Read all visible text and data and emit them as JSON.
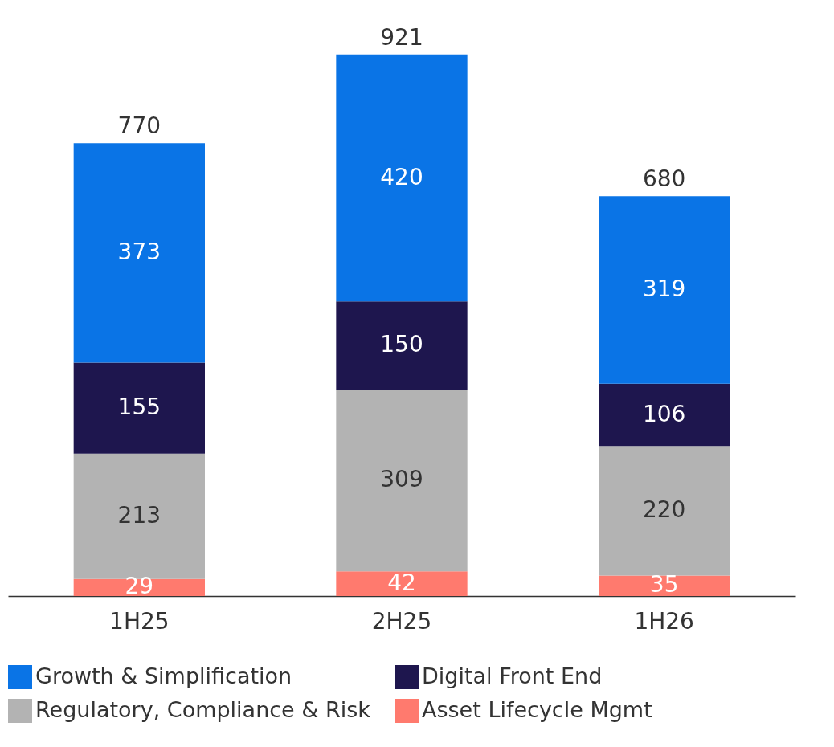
{
  "chart_data": {
    "type": "bar",
    "stacked": true,
    "categories": [
      "1H25",
      "2H25",
      "1H26"
    ],
    "series": [
      {
        "name": "Asset Lifecycle Mgmt",
        "color": "#ff7a6e",
        "values": [
          29,
          42,
          35
        ]
      },
      {
        "name": "Regulatory, Compliance & Risk",
        "color": "#b3b3b3",
        "values": [
          213,
          309,
          220
        ]
      },
      {
        "name": "Digital Front End",
        "color": "#1e164e",
        "values": [
          155,
          150,
          106
        ]
      },
      {
        "name": "Growth & Simplification",
        "color": "#0a74e6",
        "values": [
          373,
          420,
          319
        ]
      }
    ],
    "totals": [
      "770",
      "921",
      "680"
    ],
    "data_labels": true,
    "legend": "bottom"
  }
}
